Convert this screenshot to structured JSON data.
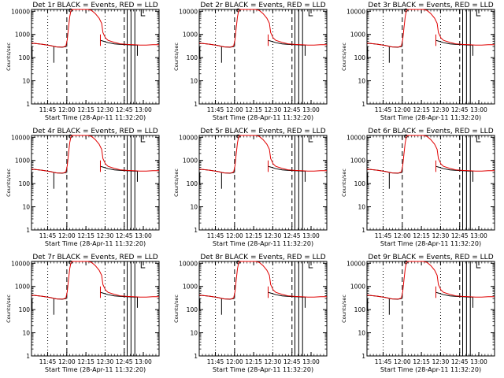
{
  "figure": {
    "ylabel": "Counts/sec",
    "xlabel": "Start Time (28-Apr-11 11:32:20)",
    "x_ticks": [
      "11:45",
      "12:00",
      "12:15",
      "12:30",
      "12:45",
      "13:00"
    ],
    "y_ticks": [
      "1",
      "10",
      "100",
      "1000",
      "10000"
    ],
    "event_color": "#000000",
    "lld_color": "#e00000"
  },
  "chart_data": [
    {
      "title": "Det 1r BLACK = Events, RED = LLD",
      "type": "line",
      "x_unit": "minutes after 11:32:20",
      "yscale": "log",
      "ylim": [
        1,
        12000
      ],
      "xlim": [
        0,
        100
      ],
      "series": [
        {
          "name": "BLACK = Events",
          "x": [
            0,
            8,
            15,
            18,
            20,
            22,
            24,
            27,
            30,
            33,
            35,
            38,
            40,
            42,
            45,
            48,
            50,
            52,
            55,
            60,
            65,
            70,
            75,
            80,
            83
          ],
          "y": [
            420,
            380,
            330,
            300,
            290,
            285,
            280,
            300,
            3000,
            12000,
            12000,
            12000,
            12000,
            11000,
            9000,
            6000,
            3500,
            2000,
            900,
            560,
            440,
            380,
            360,
            350,
            345
          ]
        },
        {
          "name": "BLACK = Events (line2)",
          "x": [
            0,
            30,
            35,
            40,
            45,
            50,
            55,
            60,
            65,
            70,
            75,
            80,
            83
          ],
          "y": [
            420,
            300,
            12000,
            12000,
            11000,
            8000,
            850,
            520,
            430,
            380,
            360,
            350,
            345
          ]
        },
        {
          "name": "RED = LLD",
          "x": [
            0,
            8,
            15,
            18,
            20,
            22,
            25,
            28,
            32,
            35,
            38,
            41,
            45,
            50,
            53,
            55,
            60,
            65,
            70,
            75,
            80,
            85,
            90,
            95,
            100
          ],
          "y": [
            420,
            380,
            330,
            300,
            290,
            285,
            290,
            400,
            9000,
            12000,
            12000,
            12000,
            11000,
            8000,
            5000,
            2500,
            700,
            500,
            420,
            380,
            360,
            350,
            350,
            360,
            360
          ]
        }
      ],
      "vlines_dotted": [
        12.7,
        57.7
      ],
      "vlines_dashed": [
        27.7,
        72.7
      ],
      "vlines_solid": [
        75,
        78,
        81
      ]
    }
  ],
  "panel_titles": [
    "Det 1r BLACK = Events, RED = LLD",
    "Det 2r BLACK = Events, RED = LLD",
    "Det 3r BLACK = Events, RED = LLD",
    "Det 4r BLACK = Events, RED = LLD",
    "Det 5r BLACK = Events, RED = LLD",
    "Det 6r BLACK = Events, RED = LLD",
    "Det 7r BLACK = Events, RED = LLD",
    "Det 8r BLACK = Events, RED = LLD",
    "Det 9r BLACK = Events, RED = LLD"
  ],
  "series_template": {
    "events_x": [
      0,
      8,
      15,
      18,
      20,
      22,
      24,
      27,
      28,
      54,
      56,
      60,
      65,
      70,
      75,
      80,
      83
    ],
    "events_y": [
      420,
      380,
      330,
      300,
      290,
      285,
      280,
      300,
      310,
      560,
      520,
      440,
      390,
      370,
      360,
      350,
      345
    ],
    "lld_x": [
      0,
      8,
      15,
      18,
      20,
      22,
      25,
      27,
      28,
      29,
      30,
      31,
      32,
      33,
      35,
      38,
      41,
      44,
      47,
      50,
      53,
      55,
      56,
      58,
      60,
      65,
      70,
      75,
      80,
      85,
      90,
      95,
      100
    ],
    "lld_y": [
      420,
      380,
      330,
      300,
      290,
      285,
      290,
      320,
      600,
      2000,
      6000,
      11000,
      12000,
      12000,
      12000,
      12000,
      12000,
      12000,
      11000,
      8000,
      5000,
      3000,
      1200,
      700,
      560,
      450,
      390,
      370,
      360,
      350,
      350,
      360,
      360
    ],
    "spikes_x": [
      43,
      45,
      48
    ],
    "dotted_x": [
      12.7,
      57.7
    ],
    "dashed_x": [
      27.7,
      72.7
    ],
    "solid_x": [
      75,
      78,
      81
    ],
    "minutes_per_tick": 15,
    "first_tick_min": 12.67
  }
}
